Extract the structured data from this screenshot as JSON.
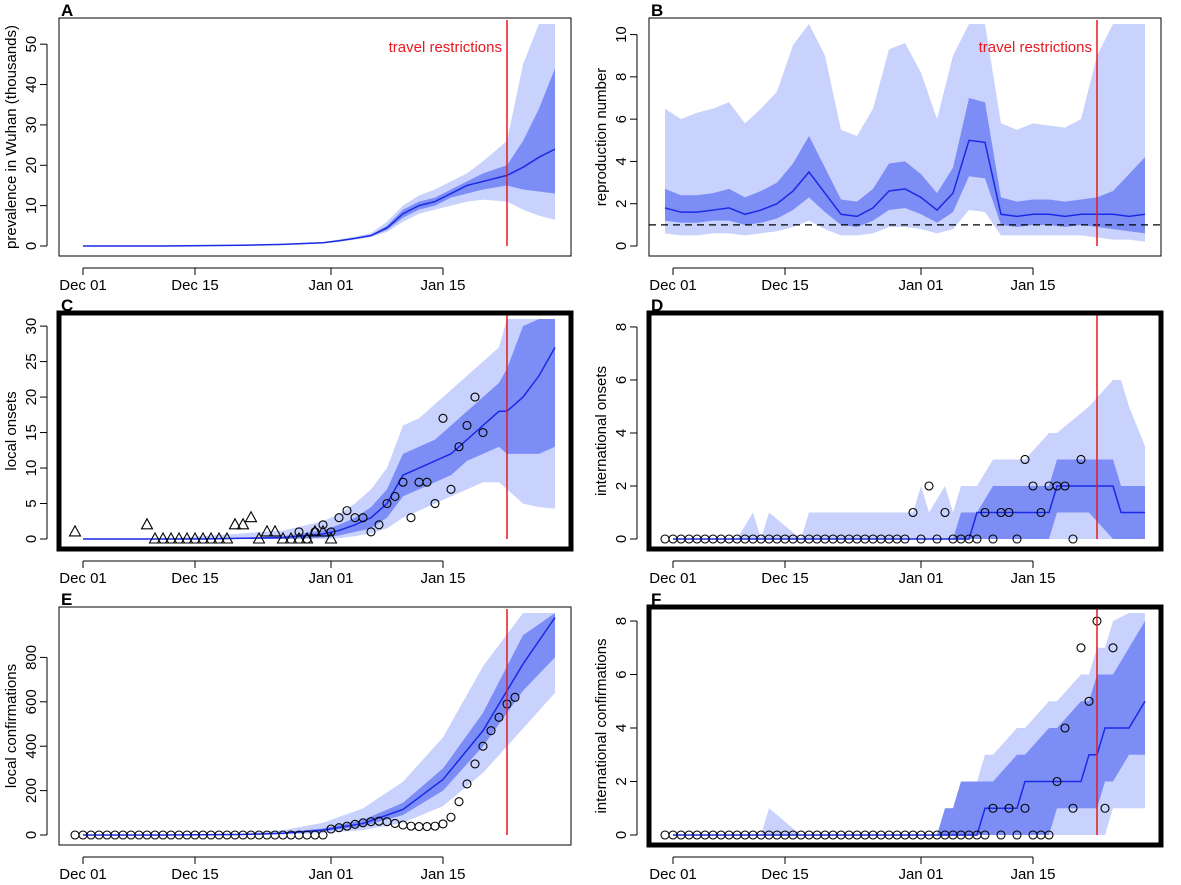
{
  "figure": {
    "panel_letters": [
      "A",
      "B",
      "C",
      "D",
      "E",
      "F"
    ]
  },
  "chart_data": [
    {
      "id": "A",
      "type": "line",
      "ylabel": "prevalence in Wuhan (thousands)",
      "xticks": [
        "Dec 01",
        "Dec 15",
        "Jan 01",
        "Jan 15"
      ],
      "yticks": [
        0,
        10,
        20,
        30,
        40,
        50
      ],
      "ylim": [
        0,
        55
      ],
      "xrange_days": [
        -2,
        60
      ],
      "annotation": "travel restrictions",
      "annotation_day": 53,
      "bold_border": false,
      "x": [
        0,
        5,
        10,
        15,
        20,
        25,
        30,
        32,
        34,
        36,
        38,
        40,
        42,
        44,
        46,
        48,
        50,
        53,
        55,
        57,
        59
      ],
      "median": [
        0,
        0,
        0,
        0.1,
        0.2,
        0.4,
        0.8,
        1.3,
        1.9,
        2.6,
        4.5,
        8,
        10,
        11,
        13,
        15,
        16,
        17.5,
        19.5,
        22,
        24
      ],
      "inner_low": [
        0,
        0,
        0,
        0.1,
        0.2,
        0.4,
        0.8,
        1.2,
        1.8,
        2.4,
        4,
        7,
        9,
        10,
        12,
        13,
        14,
        15,
        14,
        13.5,
        13
      ],
      "inner_high": [
        0,
        0,
        0,
        0.1,
        0.2,
        0.4,
        0.9,
        1.4,
        2,
        2.8,
        5,
        9,
        11,
        12,
        14,
        16,
        18,
        20,
        26,
        34,
        44
      ],
      "outer_low": [
        0,
        0,
        0,
        0.1,
        0.2,
        0.4,
        0.7,
        1,
        1.6,
        2.2,
        3.5,
        6,
        8,
        9,
        10,
        11,
        11.5,
        11,
        9,
        7.5,
        6.5
      ],
      "outer_high": [
        0,
        0,
        0,
        0.1,
        0.2,
        0.5,
        1,
        1.6,
        2.3,
        3.2,
        6,
        10,
        12.5,
        14,
        16,
        18,
        21,
        26,
        45,
        60,
        60
      ]
    },
    {
      "id": "B",
      "type": "line",
      "ylabel": "reproduction number",
      "xticks": [
        "Dec 01",
        "Dec 15",
        "Jan 01",
        "Jan 15"
      ],
      "yticks": [
        0,
        2,
        4,
        6,
        8,
        10
      ],
      "ylim": [
        0,
        10.5
      ],
      "xrange_days": [
        -2,
        60
      ],
      "annotation": "travel restrictions",
      "annotation_day": 53,
      "reference_line": 1,
      "bold_border": false,
      "x": [
        -1,
        1,
        3,
        5,
        7,
        9,
        11,
        13,
        15,
        17,
        19,
        21,
        23,
        25,
        27,
        29,
        31,
        33,
        35,
        37,
        39,
        41,
        43,
        45,
        47,
        49,
        51,
        53,
        55,
        57,
        59
      ],
      "median": [
        1.8,
        1.6,
        1.6,
        1.7,
        1.8,
        1.5,
        1.7,
        2.0,
        2.6,
        3.5,
        2.5,
        1.5,
        1.4,
        1.8,
        2.6,
        2.7,
        2.3,
        1.7,
        2.5,
        5,
        4.9,
        1.5,
        1.4,
        1.5,
        1.5,
        1.4,
        1.5,
        1.5,
        1.5,
        1.4,
        1.5
      ],
      "inner_low": [
        1.2,
        1.1,
        1.1,
        1.2,
        1.2,
        1.0,
        1.1,
        1.3,
        1.7,
        2.3,
        1.6,
        1.0,
        0.9,
        1.2,
        1.7,
        1.8,
        1.5,
        1.1,
        1.6,
        3.3,
        3.2,
        1.0,
        0.9,
        1.0,
        1.0,
        0.9,
        1.0,
        0.9,
        0.8,
        0.7,
        0.6
      ],
      "inner_high": [
        2.7,
        2.4,
        2.4,
        2.5,
        2.7,
        2.3,
        2.6,
        3.0,
        3.9,
        5.2,
        3.7,
        2.2,
        2.1,
        2.7,
        3.9,
        4.0,
        3.4,
        2.5,
        3.7,
        7,
        6.8,
        2.3,
        2.1,
        2.2,
        2.2,
        2.1,
        2.2,
        2.3,
        2.6,
        3.4,
        4.2
      ],
      "outer_low": [
        0.6,
        0.5,
        0.5,
        0.6,
        0.6,
        0.5,
        0.6,
        0.7,
        0.9,
        1.2,
        0.8,
        0.5,
        0.5,
        0.6,
        0.9,
        0.9,
        0.8,
        0.6,
        0.8,
        1.7,
        1.6,
        0.5,
        0.5,
        0.5,
        0.5,
        0.5,
        0.5,
        0.4,
        0.3,
        0.3,
        0.2
      ],
      "outer_high": [
        6.5,
        6.0,
        6.3,
        6.5,
        6.8,
        5.8,
        6.5,
        7.3,
        9.5,
        12,
        9,
        5.5,
        5.2,
        6.5,
        9.3,
        9.6,
        8.2,
        6.0,
        9,
        11,
        11,
        5.8,
        5.5,
        5.8,
        5.7,
        5.6,
        6.0,
        9,
        12,
        12,
        12
      ]
    },
    {
      "id": "C",
      "type": "scatter",
      "ylabel": "local onsets",
      "xticks": [
        "Dec 01",
        "Dec 15",
        "Jan 01",
        "Jan 15"
      ],
      "yticks": [
        0,
        5,
        10,
        15,
        20,
        25,
        30
      ],
      "ylim": [
        0,
        31
      ],
      "xrange_days": [
        -2,
        60
      ],
      "annotation_day": 53,
      "bold_border": true,
      "x": [
        0,
        5,
        10,
        15,
        20,
        25,
        30,
        32,
        34,
        36,
        38,
        40,
        42,
        44,
        46,
        48,
        50,
        52,
        53,
        55,
        57,
        59
      ],
      "median": [
        0,
        0,
        0,
        0,
        0.1,
        0.2,
        0.7,
        1.2,
        2,
        3,
        5,
        9,
        10,
        11,
        12,
        14,
        16,
        18,
        18,
        20,
        23,
        27
      ],
      "inner_low": [
        0,
        0,
        0,
        0,
        0,
        0,
        0.2,
        0.5,
        1,
        1.5,
        3,
        6,
        7,
        8,
        9,
        11,
        12,
        13,
        12,
        12,
        12,
        13
      ],
      "inner_high": [
        0,
        0,
        0,
        0.1,
        0.2,
        0.4,
        1.2,
        2,
        3,
        4.5,
        7,
        12,
        13,
        14,
        16,
        18,
        20,
        22,
        24,
        30,
        34,
        34
      ],
      "outer_low": [
        0,
        0,
        0,
        0,
        0,
        0,
        0,
        0.1,
        0.4,
        0.8,
        1.5,
        3,
        4,
        5,
        6,
        7,
        8,
        8,
        7,
        5,
        4.5,
        4.3
      ],
      "outer_high": [
        0,
        0,
        0,
        0.4,
        0.8,
        1.2,
        2.5,
        3.5,
        5,
        7,
        10,
        16,
        17,
        19,
        21,
        23,
        25,
        27,
        31,
        38,
        40,
        40
      ],
      "points": [
        {
          "x": -1,
          "y": 1,
          "m": "tri"
        },
        {
          "x": 8,
          "y": 2,
          "m": "tri"
        },
        {
          "x": 9,
          "y": 0,
          "m": "tri"
        },
        {
          "x": 10,
          "y": 0,
          "m": "tri"
        },
        {
          "x": 11,
          "y": 0,
          "m": "tri"
        },
        {
          "x": 12,
          "y": 0,
          "m": "tri"
        },
        {
          "x": 13,
          "y": 0,
          "m": "tri"
        },
        {
          "x": 14,
          "y": 0,
          "m": "tri"
        },
        {
          "x": 15,
          "y": 0,
          "m": "tri"
        },
        {
          "x": 16,
          "y": 0,
          "m": "tri"
        },
        {
          "x": 17,
          "y": 0,
          "m": "tri"
        },
        {
          "x": 18,
          "y": 0,
          "m": "tri"
        },
        {
          "x": 19,
          "y": 2,
          "m": "tri"
        },
        {
          "x": 20,
          "y": 2,
          "m": "tri"
        },
        {
          "x": 21,
          "y": 3,
          "m": "tri"
        },
        {
          "x": 22,
          "y": 0,
          "m": "tri"
        },
        {
          "x": 23,
          "y": 1,
          "m": "tri"
        },
        {
          "x": 24,
          "y": 1,
          "m": "tri"
        },
        {
          "x": 25,
          "y": 0,
          "m": "tri"
        },
        {
          "x": 26,
          "y": 0,
          "m": "tri"
        },
        {
          "x": 27,
          "y": 0,
          "m": "tri"
        },
        {
          "x": 28,
          "y": 0,
          "m": "tri"
        },
        {
          "x": 29,
          "y": 1,
          "m": "tri"
        },
        {
          "x": 30,
          "y": 1,
          "m": "tri"
        },
        {
          "x": 31,
          "y": 0,
          "m": "tri"
        },
        {
          "x": 27,
          "y": 1,
          "m": "circ"
        },
        {
          "x": 28,
          "y": 0,
          "m": "circ"
        },
        {
          "x": 29,
          "y": 1,
          "m": "circ"
        },
        {
          "x": 30,
          "y": 2,
          "m": "circ"
        },
        {
          "x": 31,
          "y": 1,
          "m": "circ"
        },
        {
          "x": 32,
          "y": 3,
          "m": "circ"
        },
        {
          "x": 33,
          "y": 4,
          "m": "circ"
        },
        {
          "x": 34,
          "y": 3,
          "m": "circ"
        },
        {
          "x": 35,
          "y": 3,
          "m": "circ"
        },
        {
          "x": 36,
          "y": 1,
          "m": "circ"
        },
        {
          "x": 37,
          "y": 2,
          "m": "circ"
        },
        {
          "x": 38,
          "y": 5,
          "m": "circ"
        },
        {
          "x": 39,
          "y": 6,
          "m": "circ"
        },
        {
          "x": 40,
          "y": 8,
          "m": "circ"
        },
        {
          "x": 41,
          "y": 3,
          "m": "circ"
        },
        {
          "x": 42,
          "y": 8,
          "m": "circ"
        },
        {
          "x": 43,
          "y": 8,
          "m": "circ"
        },
        {
          "x": 44,
          "y": 5,
          "m": "circ"
        },
        {
          "x": 45,
          "y": 17,
          "m": "circ"
        },
        {
          "x": 46,
          "y": 7,
          "m": "circ"
        },
        {
          "x": 47,
          "y": 13,
          "m": "circ"
        },
        {
          "x": 48,
          "y": 16,
          "m": "circ"
        },
        {
          "x": 49,
          "y": 20,
          "m": "circ"
        },
        {
          "x": 50,
          "y": 15,
          "m": "circ"
        }
      ]
    },
    {
      "id": "D",
      "type": "scatter",
      "ylabel": "international onsets",
      "xticks": [
        "Dec 01",
        "Dec 15",
        "Jan 01",
        "Jan 15"
      ],
      "yticks": [
        0,
        2,
        4,
        6,
        8
      ],
      "ylim": [
        0,
        8.3
      ],
      "xrange_days": [
        -2,
        60
      ],
      "annotation_day": 53,
      "bold_border": true,
      "x": [
        0,
        8,
        9,
        10,
        11,
        12,
        16,
        17,
        30,
        31,
        32,
        34,
        35,
        36,
        37,
        38,
        40,
        44,
        47,
        48,
        52,
        55,
        56,
        57,
        59
      ],
      "median": [
        0,
        0,
        0,
        0,
        0,
        0,
        0,
        0,
        0,
        0,
        0,
        0,
        0,
        0,
        0,
        1,
        1,
        1,
        1,
        2,
        2,
        2,
        1,
        1,
        1
      ],
      "inner_low": [
        0,
        0,
        0,
        0,
        0,
        0,
        0,
        0,
        0,
        0,
        0,
        0,
        0,
        0,
        0,
        0,
        0,
        0,
        0,
        1,
        1,
        0,
        0,
        0,
        0
      ],
      "inner_high": [
        0,
        0,
        0,
        0,
        0,
        0,
        0,
        0,
        0,
        0,
        0,
        0,
        0,
        1,
        1,
        1,
        2,
        2,
        2,
        3,
        3,
        3,
        2,
        2,
        2
      ],
      "outer_low": [
        0,
        0,
        0,
        0,
        0,
        0,
        0,
        0,
        0,
        0,
        0,
        0,
        0,
        0,
        0,
        0,
        0,
        0,
        0,
        0,
        0,
        0,
        0,
        0,
        0
      ],
      "outer_high": [
        0,
        0,
        0.5,
        1,
        0,
        1,
        0,
        1,
        1,
        2,
        1,
        2,
        1,
        2,
        2,
        2,
        3,
        3,
        4,
        4,
        5,
        6,
        6,
        5,
        3.5
      ],
      "points_y": [
        0,
        0,
        0,
        0,
        0,
        0,
        0,
        0,
        0,
        0,
        0,
        0,
        0,
        0,
        0,
        0,
        0,
        0,
        0,
        0,
        0,
        0,
        0,
        0,
        0,
        0,
        0,
        0,
        0,
        0,
        0,
        1,
        0,
        2,
        0,
        1,
        0,
        0,
        0,
        0,
        1,
        0,
        1,
        1,
        0,
        3,
        2,
        1,
        2,
        2,
        2,
        0,
        3
      ],
      "points_x_start": -1
    },
    {
      "id": "E",
      "type": "scatter",
      "ylabel": "local confirmations",
      "xticks": [
        "Dec 01",
        "Dec 15",
        "Jan 01",
        "Jan 15"
      ],
      "yticks": [
        0,
        200,
        400,
        600,
        800
      ],
      "ylim": [
        0,
        1000
      ],
      "xrange_days": [
        -2,
        60
      ],
      "annotation_day": 53,
      "bold_border": false,
      "x": [
        0,
        10,
        20,
        25,
        30,
        35,
        40,
        45,
        50,
        55,
        59
      ],
      "median": [
        0,
        0,
        2,
        8,
        22,
        52,
        115,
        250,
        470,
        770,
        980
      ],
      "inner_low": [
        0,
        0,
        1,
        5,
        16,
        40,
        90,
        200,
        400,
        650,
        800
      ],
      "inner_high": [
        0,
        0,
        3,
        11,
        30,
        68,
        145,
        300,
        550,
        900,
        1200
      ],
      "outer_low": [
        0,
        0,
        0,
        2,
        8,
        22,
        55,
        130,
        280,
        480,
        640
      ],
      "outer_high": [
        0,
        1,
        8,
        22,
        55,
        120,
        240,
        440,
        760,
        1150,
        1400
      ],
      "points_y": [
        0,
        0,
        0,
        0,
        0,
        0,
        0,
        0,
        0,
        0,
        0,
        0,
        0,
        0,
        0,
        0,
        0,
        0,
        0,
        0,
        0,
        0,
        0,
        0,
        0,
        0,
        0,
        0,
        0,
        0,
        0,
        0,
        27,
        33,
        40,
        48,
        55,
        60,
        62,
        60,
        52,
        45,
        40,
        38,
        38,
        40,
        50,
        80,
        150,
        230,
        320,
        400,
        470,
        530,
        590,
        620
      ],
      "points_x_start": -1
    },
    {
      "id": "F",
      "type": "scatter",
      "ylabel": "international confirmations",
      "xticks": [
        "Dec 01",
        "Dec 15",
        "Jan 01",
        "Jan 15"
      ],
      "yticks": [
        0,
        2,
        4,
        6,
        8
      ],
      "ylim": [
        0,
        8.3
      ],
      "xrange_days": [
        -2,
        60
      ],
      "annotation_day": 53,
      "bold_border": true,
      "x": [
        0,
        9,
        10,
        11,
        12,
        16,
        17,
        33,
        34,
        35,
        36,
        38,
        39,
        40,
        43,
        44,
        47,
        48,
        51,
        52,
        53,
        54,
        55,
        57,
        59
      ],
      "median": [
        0,
        0,
        0,
        0,
        0,
        0,
        0,
        0,
        0,
        0,
        0,
        0,
        1,
        1,
        1,
        2,
        2,
        2,
        2,
        3,
        3,
        4,
        4,
        4,
        5
      ],
      "inner_low": [
        0,
        0,
        0,
        0,
        0,
        0,
        0,
        0,
        0,
        0,
        0,
        0,
        0,
        0,
        0,
        0,
        0,
        1,
        1,
        1,
        1,
        2,
        2,
        3,
        3
      ],
      "inner_high": [
        0,
        0,
        0,
        0,
        0,
        0,
        0,
        0,
        1,
        1,
        2,
        2,
        2,
        2,
        3,
        3,
        4,
        4,
        5,
        5,
        6,
        6,
        6,
        7,
        8
      ],
      "outer_low": [
        0,
        0,
        0,
        0,
        0,
        0,
        0,
        0,
        0,
        0,
        0,
        0,
        0,
        0,
        0,
        0,
        0,
        0,
        0,
        0,
        0,
        0,
        1,
        1,
        1
      ],
      "outer_high": [
        0,
        0,
        0,
        0,
        1,
        0,
        0,
        0,
        1,
        1,
        2,
        2,
        3,
        3,
        4,
        4,
        5,
        5,
        6,
        6,
        7,
        7,
        8,
        9,
        9
      ],
      "points_y": [
        0,
        0,
        0,
        0,
        0,
        0,
        0,
        0,
        0,
        0,
        0,
        0,
        0,
        0,
        0,
        0,
        0,
        0,
        0,
        0,
        0,
        0,
        0,
        0,
        0,
        0,
        0,
        0,
        0,
        0,
        0,
        0,
        0,
        0,
        0,
        0,
        0,
        0,
        0,
        0,
        0,
        1,
        0,
        1,
        0,
        1,
        0,
        0,
        0,
        2,
        4,
        1,
        7,
        5,
        8,
        1,
        7
      ],
      "points_x_start": -1
    }
  ]
}
